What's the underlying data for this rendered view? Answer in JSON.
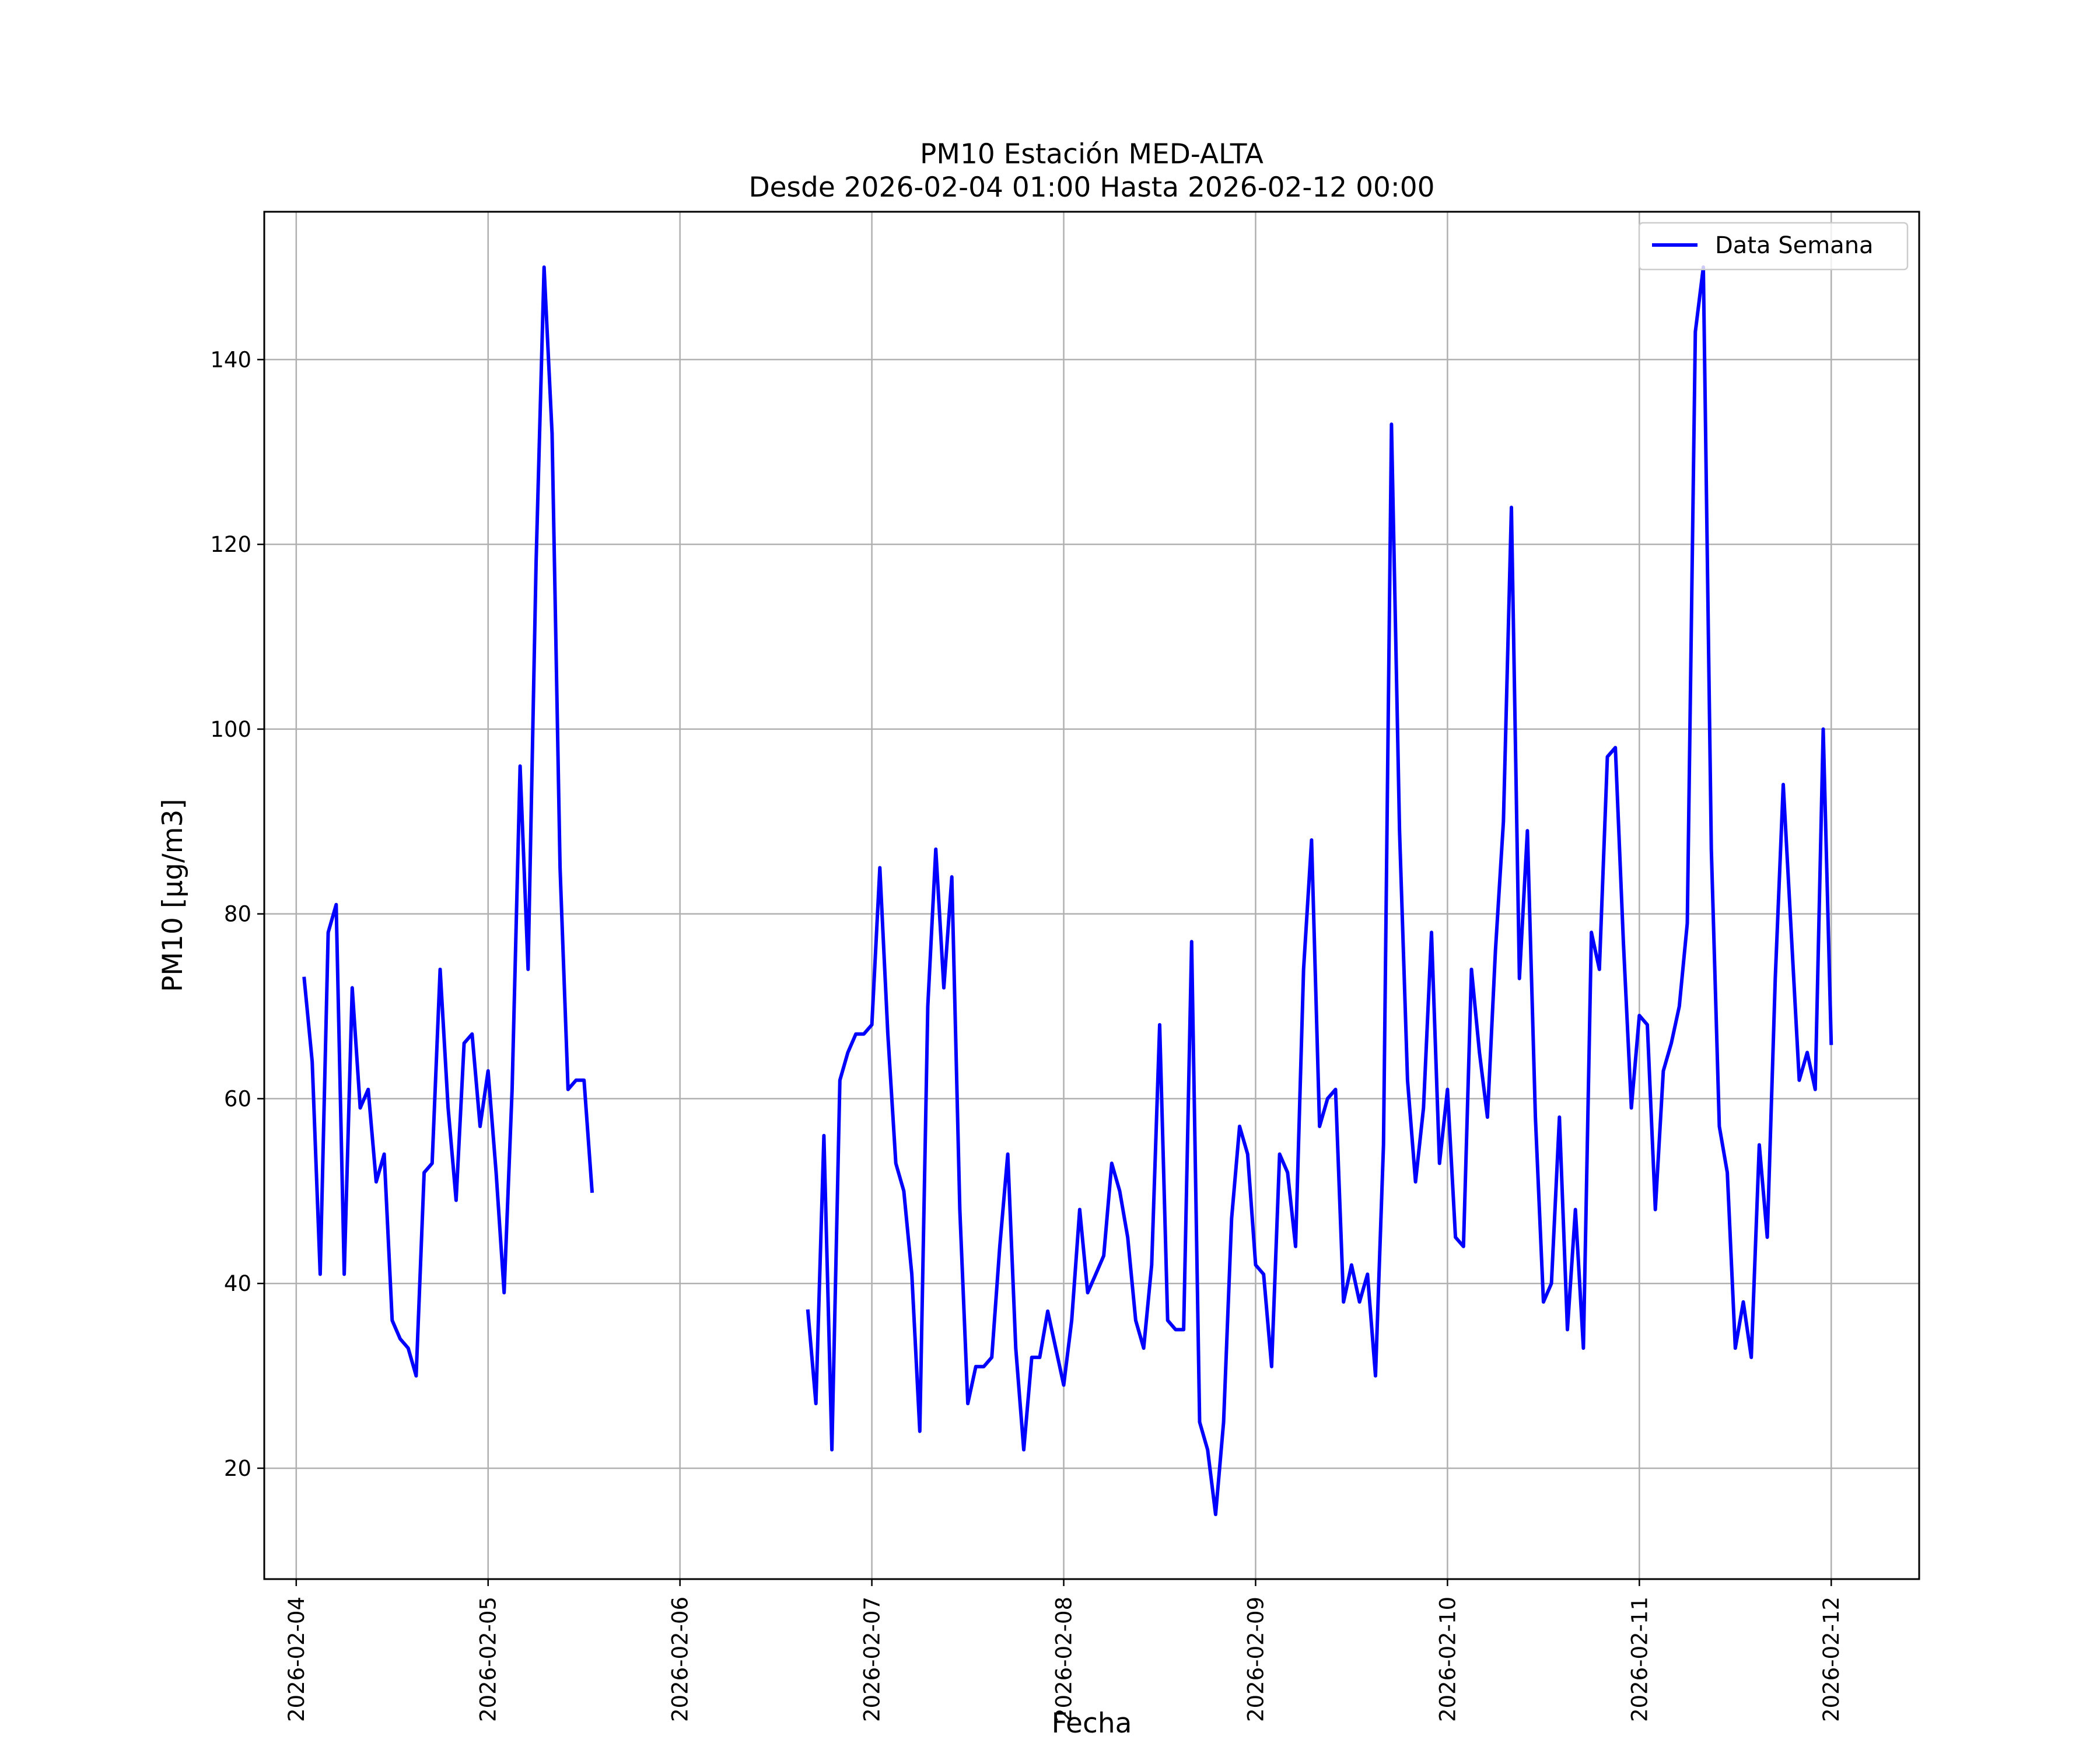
{
  "chart_data": {
    "type": "line",
    "title": "PM10 Estación MED-ALTA",
    "subtitle": "Desde 2026-02-04 01:00 Hasta 2026-02-12 00:00",
    "xlabel": "Fecha",
    "ylabel": "PM10 [μg/m3]",
    "xlim": [
      "2026-02-03 20:00",
      "2026-02-12 11:00"
    ],
    "ylim": [
      8,
      156
    ],
    "x_ticks": [
      "2026-02-04",
      "2026-02-05",
      "2026-02-06",
      "2026-02-07",
      "2026-02-08",
      "2026-02-09",
      "2026-02-10",
      "2026-02-11",
      "2026-02-12"
    ],
    "y_ticks": [
      20,
      40,
      60,
      80,
      100,
      120,
      140
    ],
    "grid": true,
    "legend_position": "top-right",
    "series": [
      {
        "name": "Data Semana",
        "color": "#0000ff",
        "x": [
          "2026-02-04 01:00",
          "2026-02-04 02:00",
          "2026-02-04 03:00",
          "2026-02-04 04:00",
          "2026-02-04 05:00",
          "2026-02-04 06:00",
          "2026-02-04 07:00",
          "2026-02-04 08:00",
          "2026-02-04 09:00",
          "2026-02-04 10:00",
          "2026-02-04 11:00",
          "2026-02-04 12:00",
          "2026-02-04 13:00",
          "2026-02-04 14:00",
          "2026-02-04 15:00",
          "2026-02-04 16:00",
          "2026-02-04 17:00",
          "2026-02-04 18:00",
          "2026-02-04 19:00",
          "2026-02-04 20:00",
          "2026-02-04 21:00",
          "2026-02-04 22:00",
          "2026-02-04 23:00",
          "2026-02-05 00:00",
          "2026-02-05 01:00",
          "2026-02-05 02:00",
          "2026-02-05 03:00",
          "2026-02-05 04:00",
          "2026-02-05 05:00",
          "2026-02-05 06:00",
          "2026-02-05 07:00",
          "2026-02-05 08:00",
          "2026-02-05 09:00",
          "2026-02-05 10:00",
          "2026-02-05 11:00",
          "2026-02-05 12:00",
          "2026-02-05 13:00",
          "2026-02-06 16:00",
          "2026-02-06 17:00",
          "2026-02-06 18:00",
          "2026-02-06 19:00",
          "2026-02-06 20:00",
          "2026-02-06 21:00",
          "2026-02-06 22:00",
          "2026-02-06 23:00",
          "2026-02-07 00:00",
          "2026-02-07 01:00",
          "2026-02-07 02:00",
          "2026-02-07 03:00",
          "2026-02-07 04:00",
          "2026-02-07 05:00",
          "2026-02-07 06:00",
          "2026-02-07 07:00",
          "2026-02-07 08:00",
          "2026-02-07 09:00",
          "2026-02-07 10:00",
          "2026-02-07 11:00",
          "2026-02-07 12:00",
          "2026-02-07 13:00",
          "2026-02-07 14:00",
          "2026-02-07 15:00",
          "2026-02-07 16:00",
          "2026-02-07 17:00",
          "2026-02-07 18:00",
          "2026-02-07 19:00",
          "2026-02-07 20:00",
          "2026-02-07 21:00",
          "2026-02-07 22:00",
          "2026-02-07 23:00",
          "2026-02-08 00:00",
          "2026-02-08 01:00",
          "2026-02-08 02:00",
          "2026-02-08 03:00",
          "2026-02-08 04:00",
          "2026-02-08 05:00",
          "2026-02-08 06:00",
          "2026-02-08 07:00",
          "2026-02-08 08:00",
          "2026-02-08 09:00",
          "2026-02-08 10:00",
          "2026-02-08 11:00",
          "2026-02-08 12:00",
          "2026-02-08 13:00",
          "2026-02-08 14:00",
          "2026-02-08 15:00",
          "2026-02-08 16:00",
          "2026-02-08 17:00",
          "2026-02-08 18:00",
          "2026-02-08 19:00",
          "2026-02-08 20:00",
          "2026-02-08 21:00",
          "2026-02-08 22:00",
          "2026-02-08 23:00",
          "2026-02-09 00:00",
          "2026-02-09 01:00",
          "2026-02-09 02:00",
          "2026-02-09 03:00",
          "2026-02-09 04:00",
          "2026-02-09 05:00",
          "2026-02-09 06:00",
          "2026-02-09 07:00",
          "2026-02-09 08:00",
          "2026-02-09 09:00",
          "2026-02-09 10:00",
          "2026-02-09 11:00",
          "2026-02-09 12:00",
          "2026-02-09 13:00",
          "2026-02-09 14:00",
          "2026-02-09 15:00",
          "2026-02-09 16:00",
          "2026-02-09 17:00",
          "2026-02-09 18:00",
          "2026-02-09 19:00",
          "2026-02-09 20:00",
          "2026-02-09 21:00",
          "2026-02-09 22:00",
          "2026-02-09 23:00",
          "2026-02-10 00:00",
          "2026-02-10 01:00",
          "2026-02-10 02:00",
          "2026-02-10 03:00",
          "2026-02-10 04:00",
          "2026-02-10 05:00",
          "2026-02-10 06:00",
          "2026-02-10 07:00",
          "2026-02-10 08:00",
          "2026-02-10 09:00",
          "2026-02-10 10:00",
          "2026-02-10 11:00",
          "2026-02-10 12:00",
          "2026-02-10 13:00",
          "2026-02-10 14:00",
          "2026-02-10 15:00",
          "2026-02-10 16:00",
          "2026-02-10 17:00",
          "2026-02-10 18:00",
          "2026-02-10 19:00",
          "2026-02-10 20:00",
          "2026-02-10 21:00",
          "2026-02-10 22:00",
          "2026-02-10 23:00",
          "2026-02-11 00:00",
          "2026-02-11 01:00",
          "2026-02-11 02:00",
          "2026-02-11 03:00",
          "2026-02-11 04:00",
          "2026-02-11 05:00",
          "2026-02-11 06:00",
          "2026-02-11 07:00",
          "2026-02-11 08:00",
          "2026-02-11 09:00",
          "2026-02-11 10:00",
          "2026-02-11 11:00",
          "2026-02-11 12:00",
          "2026-02-11 13:00",
          "2026-02-11 14:00",
          "2026-02-11 15:00",
          "2026-02-11 16:00",
          "2026-02-11 17:00",
          "2026-02-11 18:00",
          "2026-02-11 19:00",
          "2026-02-11 20:00",
          "2026-02-11 21:00",
          "2026-02-11 22:00",
          "2026-02-11 23:00",
          "2026-02-12 00:00"
        ],
        "values": [
          73,
          64,
          41,
          78,
          81,
          41,
          72,
          59,
          61,
          51,
          54,
          36,
          34,
          33,
          30,
          52,
          53,
          74,
          59,
          49,
          66,
          67,
          57,
          63,
          52,
          39,
          61,
          96,
          74,
          118,
          150,
          132,
          85,
          61,
          62,
          62,
          50,
          37,
          27,
          56,
          22,
          62,
          65,
          67,
          67,
          68,
          85,
          67,
          53,
          50,
          41,
          24,
          70,
          87,
          72,
          84,
          48,
          27,
          31,
          31,
          32,
          44,
          54,
          33,
          22,
          32,
          32,
          37,
          33,
          29,
          36,
          48,
          39,
          41,
          43,
          53,
          50,
          45,
          36,
          33,
          42,
          68,
          36,
          35,
          35,
          77,
          25,
          22,
          15,
          25,
          47,
          57,
          54,
          42,
          41,
          31,
          54,
          52,
          44,
          74,
          88,
          57,
          60,
          61,
          38,
          42,
          38,
          41,
          30,
          55,
          133,
          89,
          62,
          51,
          59,
          78,
          53,
          61,
          45,
          44,
          74,
          65,
          58,
          76,
          90,
          124,
          73,
          89,
          58,
          38,
          40,
          58,
          35,
          48,
          33,
          78,
          74,
          97,
          98,
          77,
          59,
          69,
          68,
          48,
          63,
          66,
          70,
          79,
          143,
          150,
          87,
          57,
          52,
          33,
          38,
          32,
          55,
          45,
          73,
          94,
          78,
          62,
          65,
          61,
          100,
          66
        ]
      }
    ]
  }
}
